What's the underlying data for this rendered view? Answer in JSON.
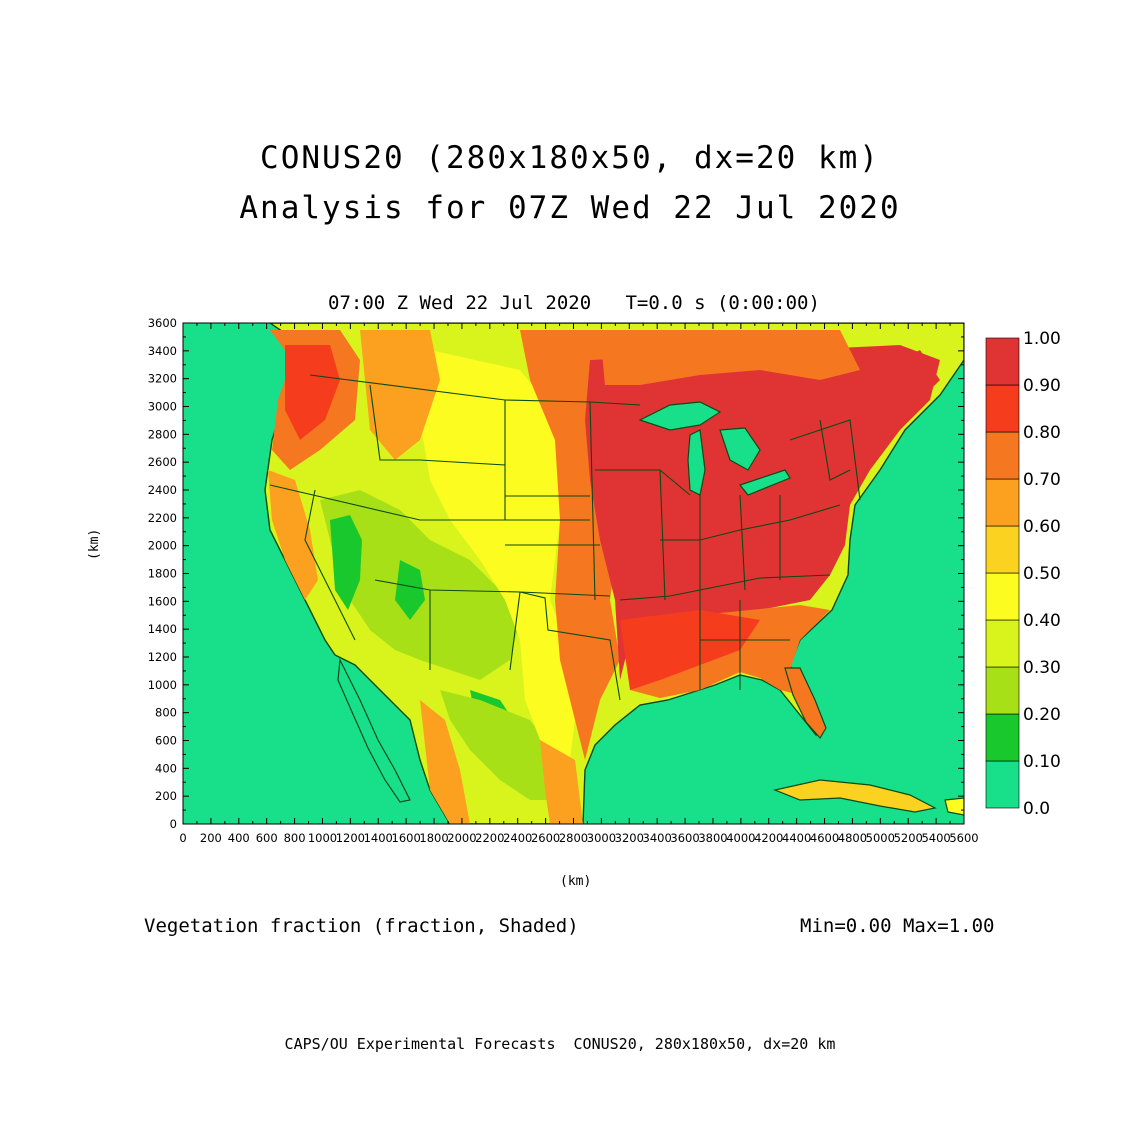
{
  "figure": {
    "title_line1": "CONUS20 (280x180x50, dx=20 km)",
    "title_line2": "Analysis for 07Z Wed 22 Jul 2020",
    "subtitle": "07:00 Z Wed 22 Jul 2020   T=0.0 s (0:00:00)",
    "x_axis_label": "(km)",
    "y_axis_label": "(km)",
    "field_label": "Vegetation fraction (fraction, Shaded)",
    "min_max": "Min=0.00 Max=1.00",
    "footer": "CAPS/OU Experimental Forecasts  CONUS20, 280x180x50, dx=20 km"
  },
  "map": {
    "x_range_km": [
      0,
      5600
    ],
    "y_range_km": [
      0,
      3600
    ],
    "x_ticks": [
      0,
      200,
      400,
      600,
      800,
      1000,
      1200,
      1400,
      1600,
      1800,
      2000,
      2200,
      2400,
      2600,
      2800,
      3000,
      3200,
      3400,
      3600,
      3800,
      4000,
      4200,
      4400,
      4600,
      4800,
      5000,
      5200,
      5400,
      5600
    ],
    "y_ticks": [
      0,
      200,
      400,
      600,
      800,
      1000,
      1200,
      1400,
      1600,
      1800,
      2000,
      2200,
      2400,
      2600,
      2800,
      3000,
      3200,
      3400,
      3600
    ],
    "boundary_color": "#0b4a16",
    "ocean_value_color": "#18e08a"
  },
  "colorbar": {
    "levels": [
      "0.0",
      "0.10",
      "0.20",
      "0.30",
      "0.40",
      "0.50",
      "0.60",
      "0.70",
      "0.80",
      "0.90",
      "1.00"
    ],
    "colors": [
      "#18e08a",
      "#18c82c",
      "#a8e018",
      "#d8f41c",
      "#fcfc20",
      "#fcd220",
      "#fca020",
      "#f57820",
      "#f53c1c",
      "#e03434"
    ]
  }
}
